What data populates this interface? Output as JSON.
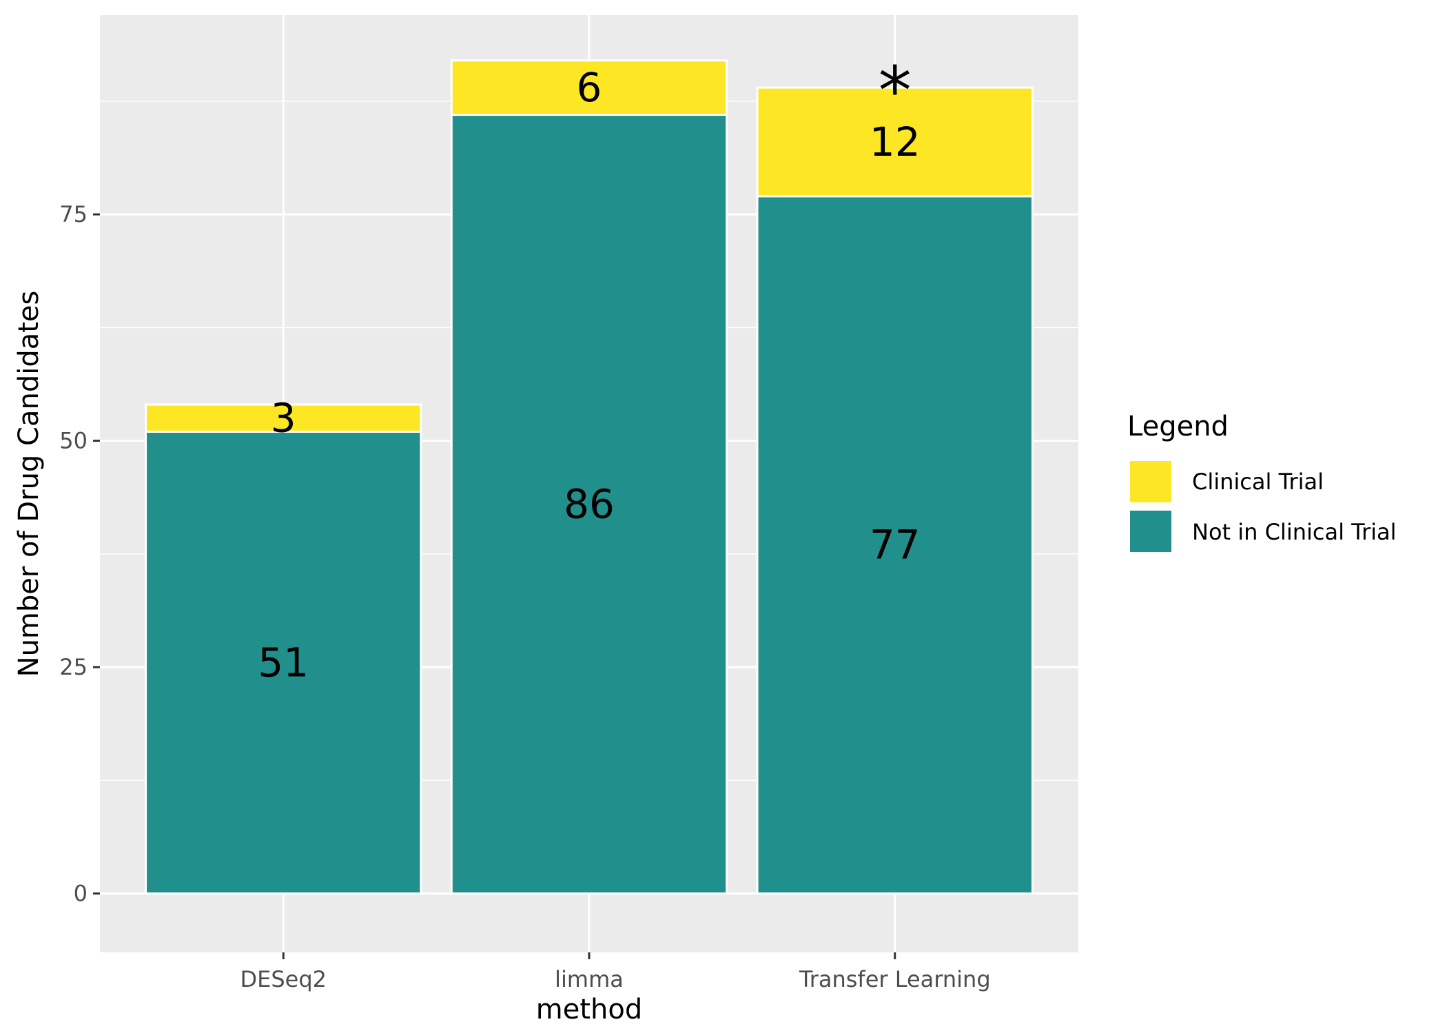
{
  "chart_data": {
    "type": "bar",
    "stacked": true,
    "xlabel": "method",
    "ylabel": "Number of Drug   Candidates",
    "ylim": [
      -6.5,
      97
    ],
    "yticks": [
      0,
      25,
      50,
      75
    ],
    "categories": [
      "DESeq2",
      "limma",
      "Transfer Learning"
    ],
    "series": [
      {
        "name": "Not in Clinical Trial",
        "color": "#21908C",
        "values": [
          51,
          86,
          77
        ]
      },
      {
        "name": "Clinical Trial",
        "color": "#FDE725",
        "values": [
          3,
          6,
          12
        ]
      }
    ],
    "annotations": [
      {
        "category": "Transfer Learning",
        "text": "*"
      }
    ],
    "legend": {
      "title": "Legend",
      "position": "right",
      "items": [
        {
          "label": "Clinical Trial",
          "color": "#FDE725"
        },
        {
          "label": "Not in Clinical Trial",
          "color": "#21908C"
        }
      ]
    },
    "grid": true,
    "panel_background": "#EBEBEB"
  }
}
